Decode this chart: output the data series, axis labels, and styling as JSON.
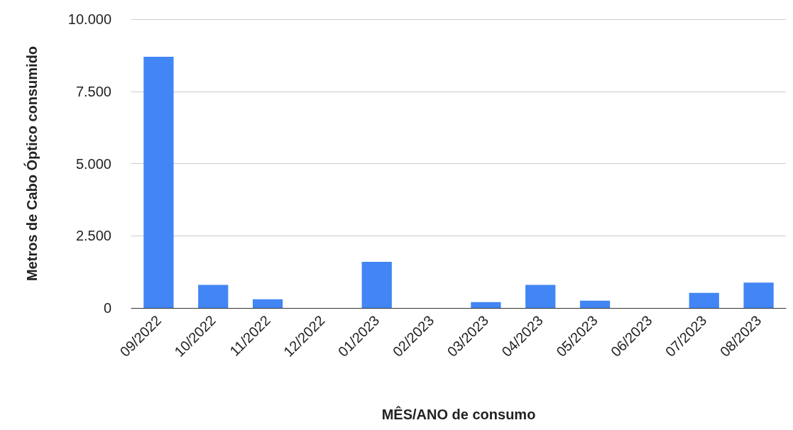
{
  "chart_data": {
    "type": "bar",
    "xlabel": "MÊS/ANO de consumo",
    "ylabel": "Metros de Cabo Óptico consumido",
    "categories": [
      "09/2022",
      "10/2022",
      "11/2022",
      "12/2022",
      "01/2023",
      "02/2023",
      "03/2023",
      "04/2023",
      "05/2023",
      "06/2023",
      "07/2023",
      "08/2023"
    ],
    "values": [
      8700,
      800,
      300,
      0,
      1600,
      0,
      200,
      800,
      250,
      0,
      520,
      880
    ],
    "color": "#4285f4",
    "ylim": [
      0,
      10000
    ],
    "yticks": [
      {
        "value": 0,
        "label": "0"
      },
      {
        "value": 2500,
        "label": "2.500"
      },
      {
        "value": 5000,
        "label": "5.000"
      },
      {
        "value": 7500,
        "label": "7.500"
      },
      {
        "value": 10000,
        "label": "10.000"
      }
    ],
    "grid": "y"
  }
}
